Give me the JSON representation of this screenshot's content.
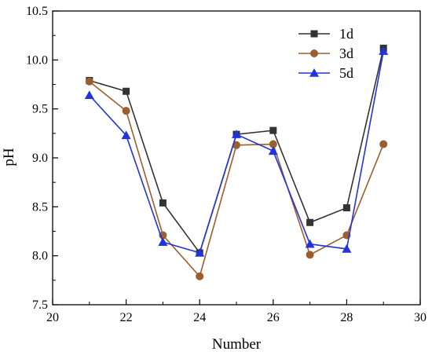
{
  "chart_data": {
    "type": "line",
    "title": "",
    "xlabel": "Number",
    "ylabel": "pH",
    "xlim": [
      20,
      30
    ],
    "ylim": [
      7.5,
      10.5
    ],
    "x_ticks": [
      "20",
      "22",
      "24",
      "26",
      "28",
      "30"
    ],
    "y_ticks": [
      "7.5",
      "8.0",
      "8.5",
      "9.0",
      "9.5",
      "10.0",
      "10.5"
    ],
    "grid": false,
    "legend_position": "top-right",
    "x": [
      21,
      22,
      23,
      24,
      25,
      26,
      27,
      28,
      29
    ],
    "series": [
      {
        "name": "1d",
        "color": "#333333",
        "marker": "square",
        "values": [
          9.79,
          9.68,
          8.54,
          8.03,
          9.24,
          9.28,
          8.34,
          8.49,
          10.12
        ]
      },
      {
        "name": "3d",
        "color": "#9b5e2e",
        "marker": "circle",
        "values": [
          9.78,
          9.48,
          8.21,
          7.79,
          9.13,
          9.14,
          8.01,
          8.21,
          9.14
        ]
      },
      {
        "name": "5d",
        "color": "#2233dd",
        "marker": "triangle",
        "values": [
          9.64,
          9.23,
          8.14,
          8.03,
          9.24,
          9.07,
          8.12,
          8.07,
          10.09
        ]
      }
    ]
  }
}
